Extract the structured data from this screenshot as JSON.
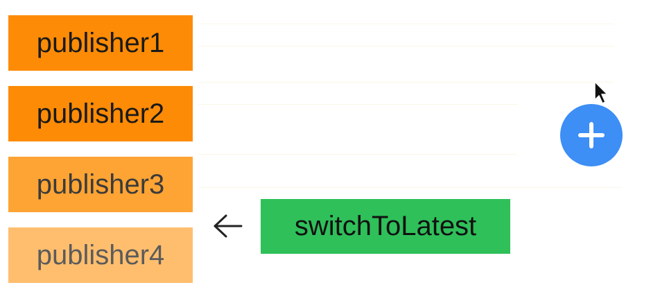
{
  "publishers": [
    {
      "label": "publisher1"
    },
    {
      "label": "publisher2"
    },
    {
      "label": "publisher3"
    },
    {
      "label": "publisher4"
    }
  ],
  "operator": {
    "label": "switchToLatest"
  },
  "icons": {
    "arrow": "arrow-left-icon",
    "add": "plus-icon",
    "cursor": "mouse-pointer-icon"
  },
  "colors": {
    "publisher_active": "#fd8b06",
    "publisher3": "#fea434",
    "publisher4": "#ffbe6e",
    "operator": "#2fc05a",
    "add_button": "#3d8ef5"
  }
}
